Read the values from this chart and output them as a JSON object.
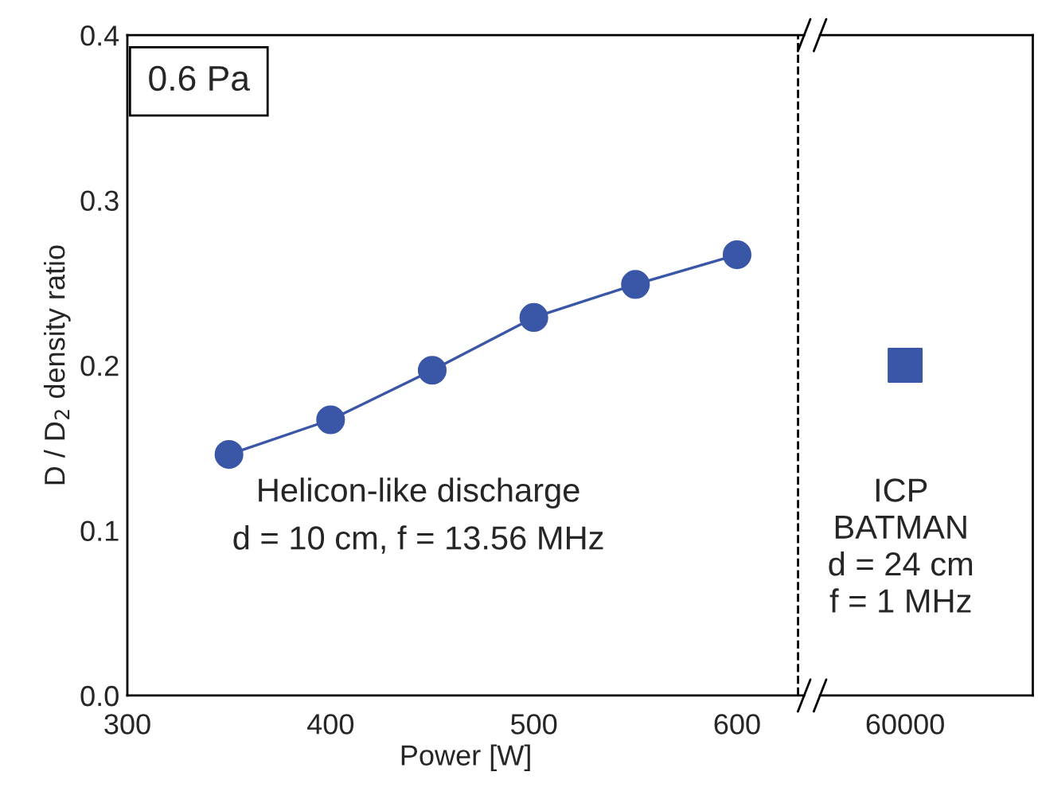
{
  "chart_data": [
    {
      "type": "line",
      "x": [
        350,
        400,
        450,
        500,
        550,
        600
      ],
      "series": [
        {
          "color": "#3a56a6",
          "values": [
            0.146,
            0.167,
            0.197,
            0.229,
            0.249,
            0.267
          ]
        }
      ],
      "marker": "circle",
      "line_style": "solid",
      "xlim": [
        300,
        633
      ],
      "xticks": [
        300,
        400,
        500,
        600
      ],
      "ylim": [
        0,
        0.4
      ],
      "yticks": [
        {
          "value": 0,
          "label": "0.0"
        },
        0.1,
        0.2,
        0.3,
        0.4
      ],
      "xlabel": "Power [W]",
      "ylabel": "D / D$_{2}$ density ratio",
      "ref_lines": [
        {
          "axis": "x",
          "value": 630,
          "color": "#000000",
          "line_style": "dashed"
        }
      ],
      "annotations": [
        "0.6 Pa",
        "Helicon-like discharge\nd = 10 cm, f = 13.56 MHz"
      ],
      "grid": false,
      "legend": false
    },
    {
      "type": "scatter",
      "categories": [
        "60000"
      ],
      "series": [
        {
          "color": "#3a56a6",
          "values": [
            0.2
          ]
        }
      ],
      "marker": "square",
      "ylim": [
        0,
        0.4
      ],
      "tick_labels": "x",
      "annotations": [
        "ICP\nBATMAN\nd = 24 cm\nf = 1 MHz"
      ],
      "grid": false,
      "legend": false
    }
  ]
}
